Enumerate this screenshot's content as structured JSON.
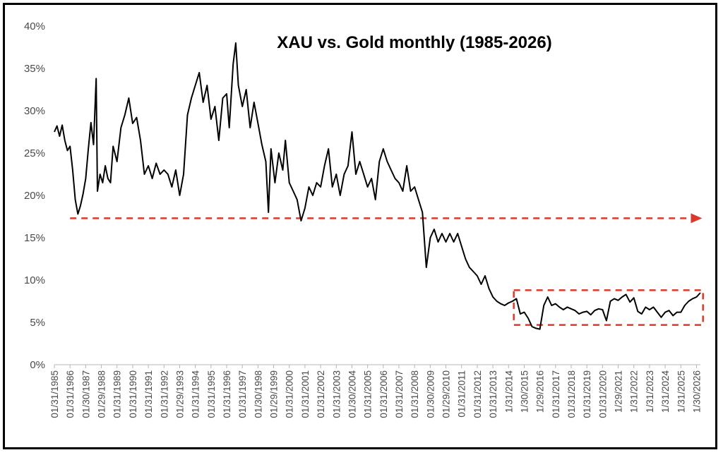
{
  "chart_data": {
    "type": "line",
    "title": "XAU vs. Gold monthly (1985-2026)",
    "xlabel": "",
    "ylabel": "",
    "x_range": [
      "1985-01-31",
      "2026-04-30"
    ],
    "ylim": [
      0,
      40
    ],
    "y_ticks": [
      "0%",
      "5%",
      "10%",
      "15%",
      "20%",
      "25%",
      "30%",
      "35%",
      "40%"
    ],
    "y_tick_values": [
      0,
      5,
      10,
      15,
      20,
      25,
      30,
      35,
      40
    ],
    "x_tick_labels": [
      "01/31/1985",
      "01/31/1986",
      "01/30/1987",
      "01/29/1988",
      "01/31/1989",
      "01/31/1990",
      "01/31/1991",
      "01/31/1992",
      "01/29/1993",
      "01/31/1994",
      "01/31/1995",
      "01/31/1996",
      "01/31/1997",
      "01/30/1998",
      "01/29/1999",
      "01/31/2000",
      "01/31/2001",
      "01/31/2002",
      "01/31/2003",
      "01/30/2004",
      "01/31/2005",
      "01/31/2006",
      "01/31/2007",
      "01/31/2008",
      "01/30/2009",
      "01/29/2010",
      "01/31/2011",
      "01/31/2012",
      "01/31/2013",
      "1/31/2014",
      "1/30/2015",
      "1/29/2016",
      "01/31/2017",
      "01/31/2018",
      "01/31/2019",
      "01/31/2020",
      "1/29/2021",
      "1/31/2022",
      "1/31/2023",
      "1/31/2024",
      "1/31/2025",
      "1/30/2026"
    ],
    "grid": false,
    "legend": "none",
    "series": [
      {
        "color": "#000000",
        "points": [
          [
            "1985-01",
            27.5
          ],
          [
            "1985-03",
            28.2
          ],
          [
            "1985-05",
            27.0
          ],
          [
            "1985-07",
            28.3
          ],
          [
            "1985-09",
            26.5
          ],
          [
            "1985-11",
            25.3
          ],
          [
            "1986-01",
            25.8
          ],
          [
            "1986-03",
            23.0
          ],
          [
            "1986-05",
            19.5
          ],
          [
            "1986-07",
            17.8
          ],
          [
            "1986-09",
            18.8
          ],
          [
            "1986-11",
            20.2
          ],
          [
            "1987-01",
            22.0
          ],
          [
            "1987-03",
            25.5
          ],
          [
            "1987-05",
            28.6
          ],
          [
            "1987-07",
            26.0
          ],
          [
            "1987-09",
            33.8
          ],
          [
            "1987-10",
            20.5
          ],
          [
            "1987-12",
            22.5
          ],
          [
            "1988-02",
            21.5
          ],
          [
            "1988-04",
            23.5
          ],
          [
            "1988-06",
            22.0
          ],
          [
            "1988-08",
            21.5
          ],
          [
            "1988-10",
            25.8
          ],
          [
            "1989-01",
            24.0
          ],
          [
            "1989-04",
            28.0
          ],
          [
            "1989-07",
            29.5
          ],
          [
            "1989-10",
            31.5
          ],
          [
            "1990-01",
            28.5
          ],
          [
            "1990-04",
            29.2
          ],
          [
            "1990-07",
            26.5
          ],
          [
            "1990-10",
            22.5
          ],
          [
            "1991-01",
            23.5
          ],
          [
            "1991-04",
            22.0
          ],
          [
            "1991-07",
            23.8
          ],
          [
            "1991-10",
            22.5
          ],
          [
            "1992-01",
            23.0
          ],
          [
            "1992-04",
            22.5
          ],
          [
            "1992-07",
            21.0
          ],
          [
            "1992-10",
            23.0
          ],
          [
            "1993-01",
            20.0
          ],
          [
            "1993-04",
            22.5
          ],
          [
            "1993-07",
            29.5
          ],
          [
            "1993-10",
            31.5
          ],
          [
            "1994-01",
            33.0
          ],
          [
            "1994-04",
            34.5
          ],
          [
            "1994-07",
            31.0
          ],
          [
            "1994-10",
            33.0
          ],
          [
            "1995-01",
            29.0
          ],
          [
            "1995-04",
            30.5
          ],
          [
            "1995-07",
            26.5
          ],
          [
            "1995-10",
            31.5
          ],
          [
            "1996-01",
            32.0
          ],
          [
            "1996-03",
            28.0
          ],
          [
            "1996-06",
            35.5
          ],
          [
            "1996-08",
            38.0
          ],
          [
            "1996-10",
            33.0
          ],
          [
            "1997-01",
            30.5
          ],
          [
            "1997-04",
            32.5
          ],
          [
            "1997-07",
            28.0
          ],
          [
            "1997-10",
            31.0
          ],
          [
            "1998-01",
            28.5
          ],
          [
            "1998-04",
            26.0
          ],
          [
            "1998-07",
            24.0
          ],
          [
            "1998-09",
            18.0
          ],
          [
            "1998-11",
            25.5
          ],
          [
            "1999-02",
            21.5
          ],
          [
            "1999-05",
            25.0
          ],
          [
            "1999-08",
            23.0
          ],
          [
            "1999-10",
            26.5
          ],
          [
            "2000-01",
            21.5
          ],
          [
            "2000-04",
            20.5
          ],
          [
            "2000-07",
            19.5
          ],
          [
            "2000-10",
            17.0
          ],
          [
            "2001-01",
            18.5
          ],
          [
            "2001-04",
            21.0
          ],
          [
            "2001-07",
            20.0
          ],
          [
            "2001-10",
            21.5
          ],
          [
            "2002-01",
            21.0
          ],
          [
            "2002-04",
            23.5
          ],
          [
            "2002-07",
            25.5
          ],
          [
            "2002-10",
            21.0
          ],
          [
            "2003-01",
            22.5
          ],
          [
            "2003-04",
            20.0
          ],
          [
            "2003-07",
            22.5
          ],
          [
            "2003-10",
            23.5
          ],
          [
            "2004-01",
            27.5
          ],
          [
            "2004-04",
            22.5
          ],
          [
            "2004-07",
            24.0
          ],
          [
            "2004-10",
            22.5
          ],
          [
            "2005-01",
            21.0
          ],
          [
            "2005-04",
            22.0
          ],
          [
            "2005-07",
            19.5
          ],
          [
            "2005-10",
            24.0
          ],
          [
            "2006-01",
            25.5
          ],
          [
            "2006-04",
            24.0
          ],
          [
            "2006-07",
            23.0
          ],
          [
            "2006-10",
            22.0
          ],
          [
            "2007-01",
            21.5
          ],
          [
            "2007-04",
            20.5
          ],
          [
            "2007-07",
            23.5
          ],
          [
            "2007-10",
            20.5
          ],
          [
            "2008-01",
            21.0
          ],
          [
            "2008-04",
            19.5
          ],
          [
            "2008-07",
            18.0
          ],
          [
            "2008-10",
            11.5
          ],
          [
            "2009-01",
            15.0
          ],
          [
            "2009-04",
            16.0
          ],
          [
            "2009-07",
            14.5
          ],
          [
            "2009-10",
            15.5
          ],
          [
            "2010-01",
            14.5
          ],
          [
            "2010-04",
            15.5
          ],
          [
            "2010-07",
            14.5
          ],
          [
            "2010-10",
            15.5
          ],
          [
            "2011-01",
            14.0
          ],
          [
            "2011-04",
            12.5
          ],
          [
            "2011-07",
            11.5
          ],
          [
            "2011-10",
            11.0
          ],
          [
            "2012-01",
            10.5
          ],
          [
            "2012-04",
            9.5
          ],
          [
            "2012-07",
            10.5
          ],
          [
            "2012-10",
            9.0
          ],
          [
            "2013-01",
            8.0
          ],
          [
            "2013-04",
            7.5
          ],
          [
            "2013-07",
            7.2
          ],
          [
            "2013-10",
            7.0
          ],
          [
            "2014-01",
            7.3
          ],
          [
            "2014-04",
            7.5
          ],
          [
            "2014-07",
            7.8
          ],
          [
            "2014-10",
            6.0
          ],
          [
            "2015-01",
            6.2
          ],
          [
            "2015-04",
            5.5
          ],
          [
            "2015-07",
            4.5
          ],
          [
            "2015-10",
            4.3
          ],
          [
            "2016-01",
            4.2
          ],
          [
            "2016-04",
            7.0
          ],
          [
            "2016-07",
            8.0
          ],
          [
            "2016-10",
            7.0
          ],
          [
            "2017-01",
            7.2
          ],
          [
            "2017-04",
            6.8
          ],
          [
            "2017-07",
            6.5
          ],
          [
            "2017-10",
            6.8
          ],
          [
            "2018-01",
            6.6
          ],
          [
            "2018-04",
            6.4
          ],
          [
            "2018-07",
            6.0
          ],
          [
            "2018-10",
            6.2
          ],
          [
            "2019-01",
            6.3
          ],
          [
            "2019-04",
            5.9
          ],
          [
            "2019-07",
            6.4
          ],
          [
            "2019-10",
            6.6
          ],
          [
            "2020-01",
            6.5
          ],
          [
            "2020-04",
            5.2
          ],
          [
            "2020-07",
            7.5
          ],
          [
            "2020-10",
            7.8
          ],
          [
            "2021-01",
            7.6
          ],
          [
            "2021-04",
            8.0
          ],
          [
            "2021-07",
            8.3
          ],
          [
            "2021-10",
            7.4
          ],
          [
            "2022-01",
            7.9
          ],
          [
            "2022-04",
            6.3
          ],
          [
            "2022-07",
            6.0
          ],
          [
            "2022-10",
            6.8
          ],
          [
            "2023-01",
            6.5
          ],
          [
            "2023-04",
            6.8
          ],
          [
            "2023-07",
            6.2
          ],
          [
            "2023-10",
            5.6
          ],
          [
            "2024-01",
            6.2
          ],
          [
            "2024-04",
            6.4
          ],
          [
            "2024-07",
            5.8
          ],
          [
            "2024-10",
            6.2
          ],
          [
            "2025-01",
            6.2
          ],
          [
            "2025-04",
            7.0
          ],
          [
            "2025-07",
            7.5
          ],
          [
            "2025-10",
            7.8
          ],
          [
            "2026-01",
            8.0
          ],
          [
            "2026-04",
            8.5
          ]
        ]
      }
    ],
    "annotations": [
      {
        "type": "dashed-arrow",
        "color": "#d93a2b",
        "y": 17.3,
        "x_from": "1986-01",
        "x_to": "2026-01"
      },
      {
        "type": "dashed-box",
        "color": "#d93a2b",
        "x_from": "2014-05",
        "x_to": "2026-06",
        "y_from": 4.7,
        "y_to": 8.8
      }
    ]
  }
}
